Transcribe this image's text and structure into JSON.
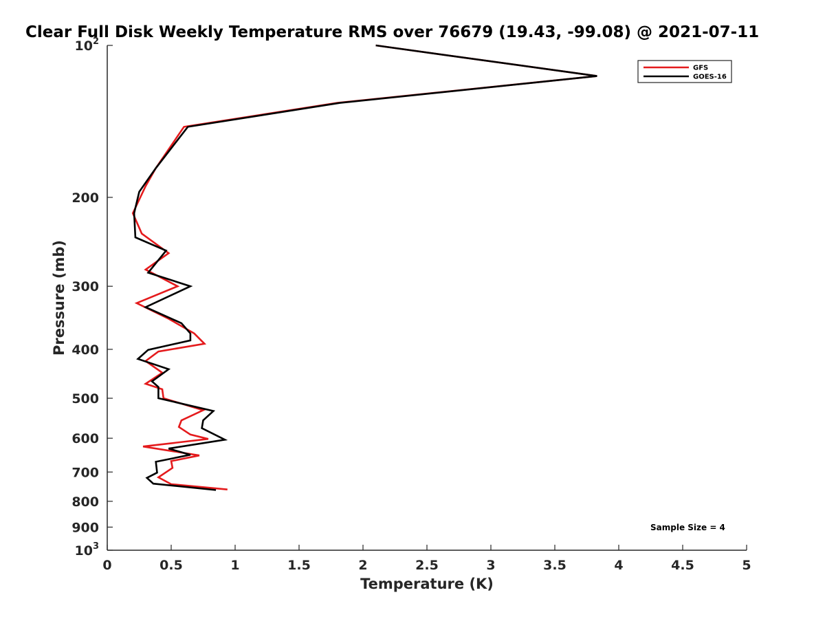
{
  "chart_data": {
    "type": "line",
    "title": "Clear Full Disk Weekly Temperature RMS over 76679 (19.43, -99.08) @ 2021-07-11",
    "xlabel": "Temperature (K)",
    "ylabel": "Pressure (mb)",
    "xlim": [
      0,
      5
    ],
    "ylim": [
      100,
      1000
    ],
    "y_scale": "log",
    "y_reversed": true,
    "grid": false,
    "legend_position": "top-right",
    "x_ticks": [
      {
        "value": 0,
        "label": "0"
      },
      {
        "value": 0.5,
        "label": "0.5"
      },
      {
        "value": 1,
        "label": "1"
      },
      {
        "value": 1.5,
        "label": "1.5"
      },
      {
        "value": 2,
        "label": "2"
      },
      {
        "value": 2.5,
        "label": "2.5"
      },
      {
        "value": 3,
        "label": "3"
      },
      {
        "value": 3.5,
        "label": "3.5"
      },
      {
        "value": 4,
        "label": "4"
      },
      {
        "value": 4.5,
        "label": "4.5"
      },
      {
        "value": 5,
        "label": "5"
      }
    ],
    "y_ticks": [
      {
        "value": 100,
        "label": "10",
        "sup": "2"
      },
      {
        "value": 200,
        "label": "200",
        "sup": ""
      },
      {
        "value": 300,
        "label": "300",
        "sup": ""
      },
      {
        "value": 400,
        "label": "400",
        "sup": ""
      },
      {
        "value": 500,
        "label": "500",
        "sup": ""
      },
      {
        "value": 600,
        "label": "600",
        "sup": ""
      },
      {
        "value": 700,
        "label": "700",
        "sup": ""
      },
      {
        "value": 800,
        "label": "800",
        "sup": ""
      },
      {
        "value": 900,
        "label": "900",
        "sup": ""
      },
      {
        "value": 1000,
        "label": "10",
        "sup": "3"
      }
    ],
    "series": [
      {
        "name": "GFS",
        "color": "#e41a1c",
        "points": [
          [
            2.1,
            100
          ],
          [
            3.83,
            115
          ],
          [
            1.8,
            130
          ],
          [
            0.6,
            145
          ],
          [
            0.38,
            175
          ],
          [
            0.3,
            190
          ],
          [
            0.2,
            215
          ],
          [
            0.27,
            236
          ],
          [
            0.48,
            258
          ],
          [
            0.3,
            278
          ],
          [
            0.55,
            300
          ],
          [
            0.23,
            324
          ],
          [
            0.48,
            348
          ],
          [
            0.68,
            372
          ],
          [
            0.76,
            390
          ],
          [
            0.4,
            404
          ],
          [
            0.3,
            422
          ],
          [
            0.43,
            445
          ],
          [
            0.3,
            468
          ],
          [
            0.43,
            480
          ],
          [
            0.44,
            500
          ],
          [
            0.75,
            528
          ],
          [
            0.58,
            553
          ],
          [
            0.56,
            570
          ],
          [
            0.65,
            590
          ],
          [
            0.79,
            602
          ],
          [
            0.28,
            623
          ],
          [
            0.72,
            649
          ],
          [
            0.5,
            666
          ],
          [
            0.51,
            687
          ],
          [
            0.4,
            717
          ],
          [
            0.5,
            740
          ],
          [
            0.94,
            758
          ]
        ]
      },
      {
        "name": "GOES-16",
        "color": "#000000",
        "points": [
          [
            2.1,
            100
          ],
          [
            3.83,
            115
          ],
          [
            1.82,
            130
          ],
          [
            0.63,
            145
          ],
          [
            0.38,
            175
          ],
          [
            0.25,
            195
          ],
          [
            0.21,
            215
          ],
          [
            0.22,
            240
          ],
          [
            0.46,
            255
          ],
          [
            0.32,
            282
          ],
          [
            0.65,
            300
          ],
          [
            0.3,
            330
          ],
          [
            0.58,
            355
          ],
          [
            0.65,
            372
          ],
          [
            0.65,
            384
          ],
          [
            0.32,
            401
          ],
          [
            0.24,
            418
          ],
          [
            0.48,
            438
          ],
          [
            0.35,
            463
          ],
          [
            0.4,
            475
          ],
          [
            0.4,
            500
          ],
          [
            0.83,
            530
          ],
          [
            0.75,
            553
          ],
          [
            0.74,
            573
          ],
          [
            0.92,
            604
          ],
          [
            0.48,
            629
          ],
          [
            0.65,
            647
          ],
          [
            0.38,
            668
          ],
          [
            0.39,
            702
          ],
          [
            0.31,
            719
          ],
          [
            0.36,
            738
          ],
          [
            0.85,
            760
          ]
        ]
      }
    ],
    "annotation": "Sample Size = 4"
  }
}
